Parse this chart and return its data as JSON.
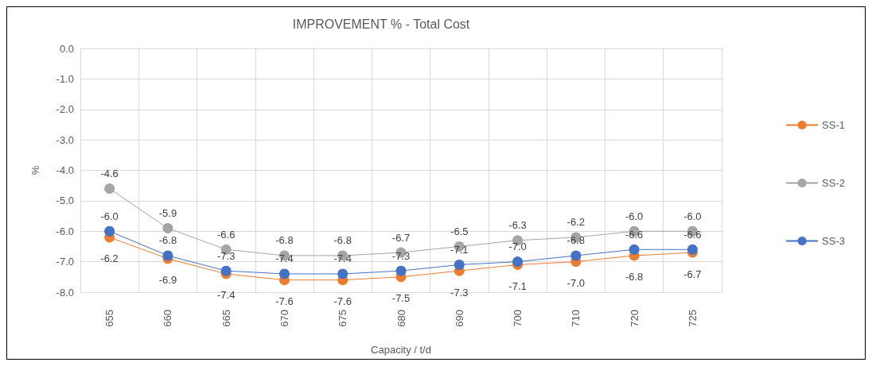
{
  "chart_data": {
    "type": "line",
    "title": "IMPROVEMENT % - Total Cost",
    "xlabel": "Capacity / t/d",
    "ylabel": "%",
    "categories": [
      "655",
      "660",
      "665",
      "670",
      "675",
      "680",
      "690",
      "700",
      "710",
      "720",
      "725"
    ],
    "series": [
      {
        "name": "SS-1",
        "color": "#ed7d31",
        "values": [
          -6.2,
          -6.9,
          -7.4,
          -7.6,
          -7.6,
          -7.5,
          -7.3,
          -7.1,
          -7.0,
          -6.8,
          -6.7
        ],
        "value_labels": [
          "-6.2",
          "-6.9",
          "-7.4",
          "-7.6",
          "-7.6",
          "-7.5",
          "-7.3",
          "-7.1",
          "-7.0",
          "-6.8",
          "-6.7"
        ]
      },
      {
        "name": "SS-2",
        "color": "#a5a5a5",
        "values": [
          -4.6,
          -5.9,
          -6.6,
          -6.8,
          -6.8,
          -6.7,
          -6.5,
          -6.3,
          -6.2,
          -6.0,
          -6.0
        ],
        "value_labels": [
          "-4.6",
          "-5.9",
          "-6.6",
          "-6.8",
          "-6.8",
          "-6.7",
          "-6.5",
          "-6.3",
          "-6.2",
          "-6.0",
          "-6.0"
        ]
      },
      {
        "name": "SS-3",
        "color": "#4472c4",
        "values": [
          -6.0,
          -6.8,
          -7.3,
          -7.4,
          -7.4,
          -7.3,
          -7.1,
          -7.0,
          -6.8,
          -6.6,
          -6.6
        ],
        "value_labels": [
          "-6.0",
          "-6.8",
          "-7.3",
          "-7.4",
          "-7.4",
          "-7.3",
          "-7.1",
          "-7.0",
          "-6.8",
          "-6.6",
          "-6.6"
        ]
      }
    ],
    "ylim": [
      -8,
      0
    ],
    "yticks": [
      {
        "value": -8,
        "label": "-8.0"
      },
      {
        "value": -7,
        "label": "-7.0"
      },
      {
        "value": -6,
        "label": "-6.0"
      },
      {
        "value": -5,
        "label": "-5.0"
      },
      {
        "value": -4,
        "label": "-4.0"
      },
      {
        "value": -3,
        "label": "-3.0"
      },
      {
        "value": -2,
        "label": "-2.0"
      },
      {
        "value": -1,
        "label": "-1.0"
      },
      {
        "value": 0,
        "label": "0.0"
      }
    ],
    "grid": true,
    "legend": "right",
    "marker": "circle",
    "line_style": "solid"
  }
}
